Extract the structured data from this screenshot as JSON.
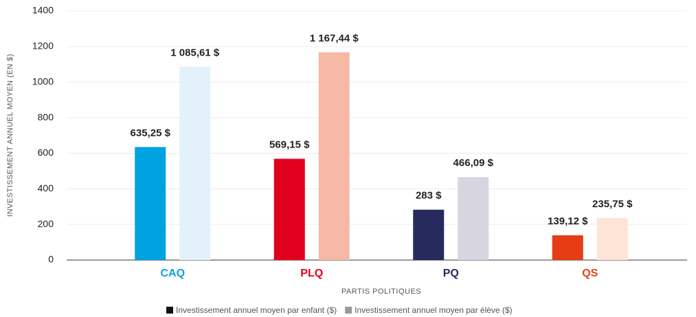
{
  "chart_data": {
    "type": "bar",
    "categories": [
      "CAQ",
      "PLQ",
      "PQ",
      "QS"
    ],
    "category_colors": [
      "#0aa3dc",
      "#e0001b",
      "#252a5a",
      "#e8401c"
    ],
    "series": [
      {
        "name": "Investissement annuel moyen par enfant ($)",
        "color": "#111111",
        "colors": [
          "#00a3e0",
          "#e1001e",
          "#262a5c",
          "#e53d16"
        ],
        "values": [
          635.25,
          569.15,
          283,
          139.12
        ],
        "value_labels": [
          "635,25 $",
          "569,15 $",
          "283 $",
          "139,12 $"
        ]
      },
      {
        "name": "Investissement annuel moyen par élève ($)",
        "color": "#999999",
        "colors": [
          "#e3f1fb",
          "#f6b9a6",
          "#d7d5e0",
          "#fde4d7"
        ],
        "values": [
          1085.61,
          1167.44,
          466.09,
          235.75
        ],
        "value_labels": [
          "1 085,61 $",
          "1 167,44 $",
          "466,09 $",
          "235,75 $"
        ]
      }
    ],
    "x_label": "PARTIS POLITIQUES",
    "y_label": "INVESTISSEMENT ANNUEL MOYEN (EN $)",
    "ylim": [
      0,
      1400
    ],
    "yticks": [
      0,
      200,
      400,
      600,
      800,
      1000,
      1200,
      1400
    ],
    "grid": true,
    "legend": "bottom"
  }
}
